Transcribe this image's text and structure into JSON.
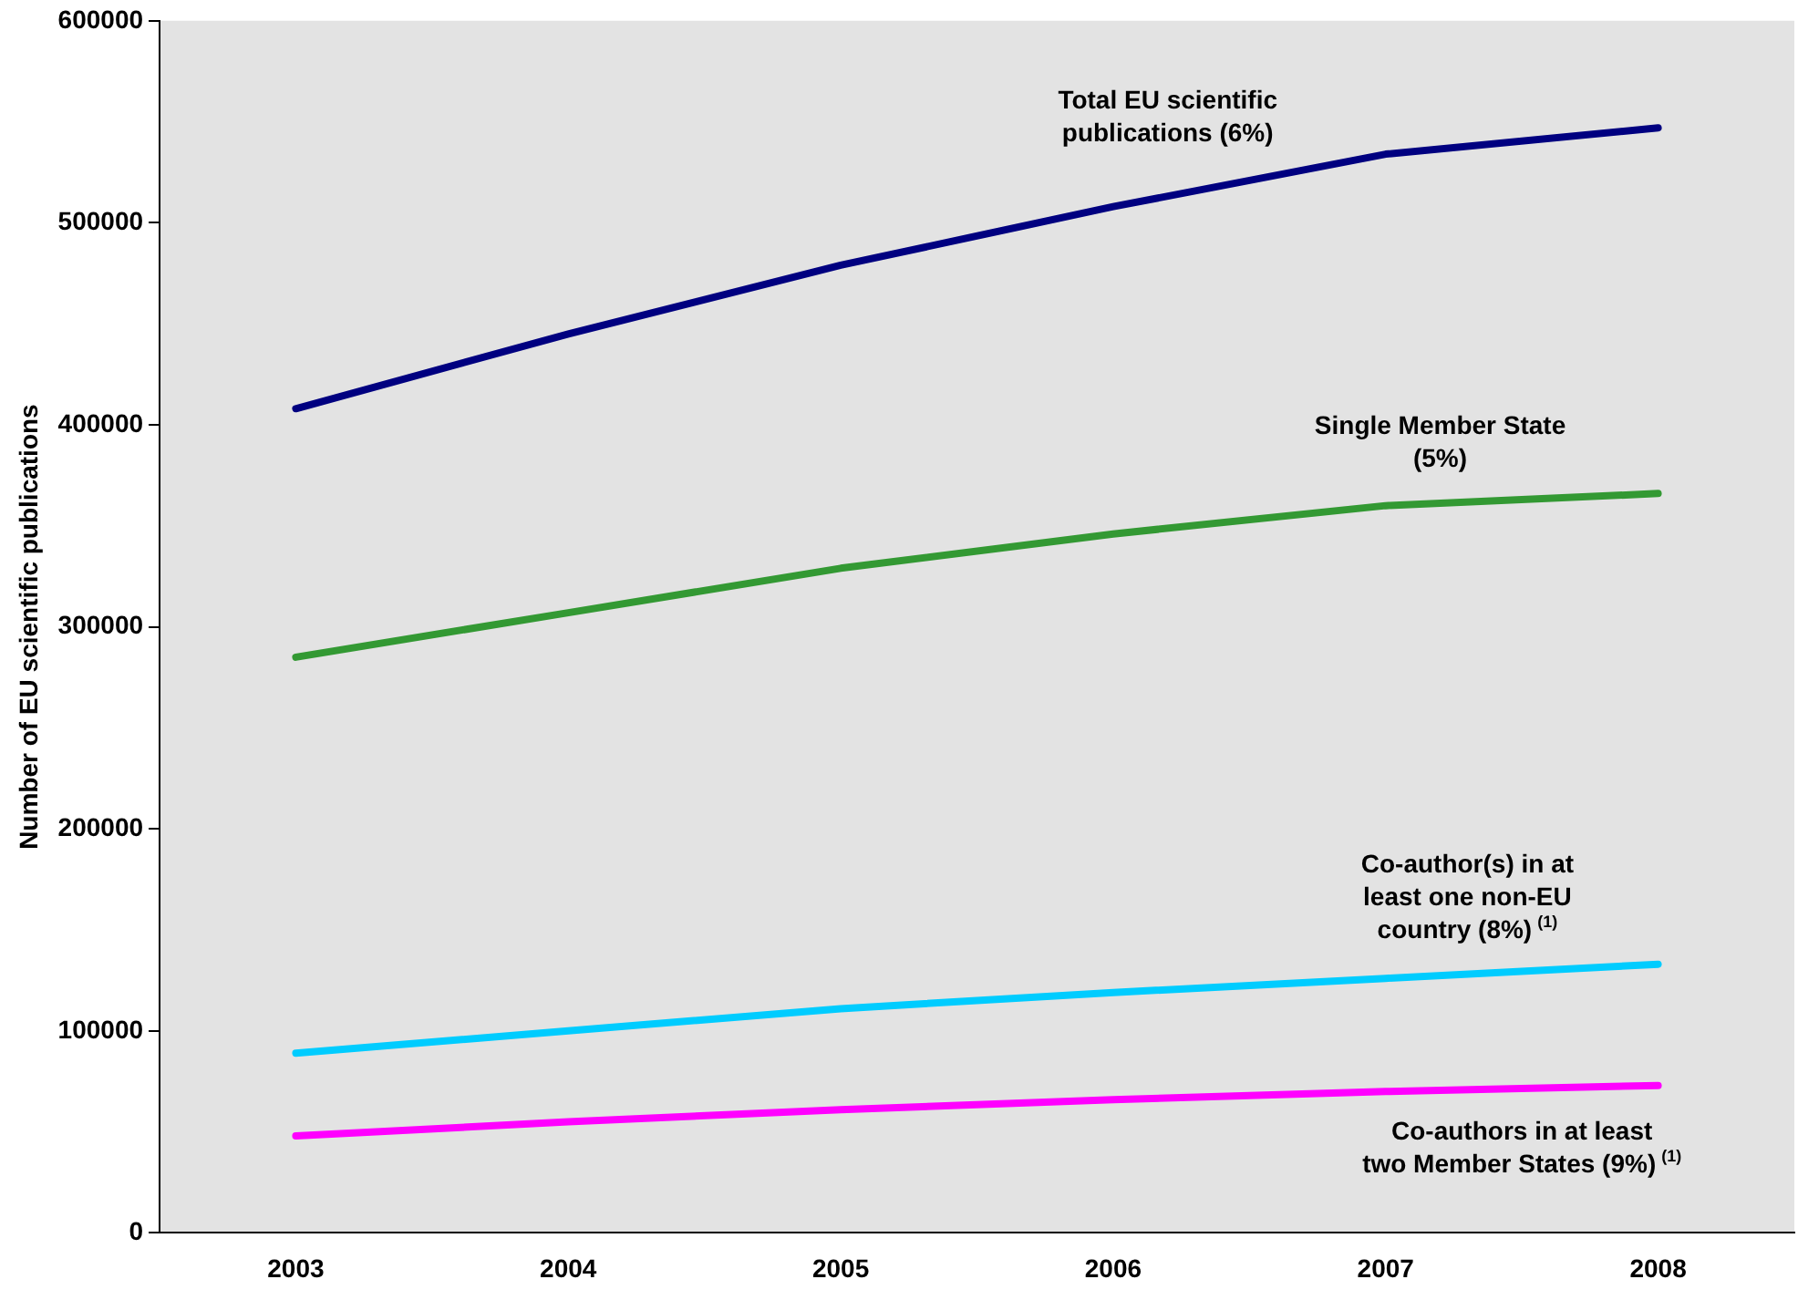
{
  "chart_data": {
    "type": "line",
    "ylabel": "Number of EU scientific publications",
    "categories": [
      "2003",
      "2004",
      "2005",
      "2006",
      "2007",
      "2008"
    ],
    "series": [
      {
        "name": "Total EU scientific publications (6%)",
        "color": "#000080",
        "values": [
          408000,
          445000,
          479000,
          508000,
          534000,
          547000
        ]
      },
      {
        "name": "Single Member State (5%)",
        "color": "#339933",
        "values": [
          285000,
          307000,
          329000,
          346000,
          360000,
          366000
        ]
      },
      {
        "name": "Co-author(s) in at least one non-EU country (8%)$^{(1)}$",
        "color": "#00ccff",
        "values": [
          89000,
          100000,
          111000,
          119000,
          126000,
          133000
        ]
      },
      {
        "name": "Co-authors in at least two Member States (9%)$^{(1)}$",
        "color": "#ff00ff",
        "values": [
          48000,
          55000,
          61000,
          66000,
          70000,
          73000
        ]
      }
    ],
    "ylim": [
      0,
      600000
    ],
    "yticks": [
      0,
      100000,
      200000,
      300000,
      400000,
      500000,
      600000
    ],
    "grid": false,
    "legend": false,
    "marker": "none",
    "line_style": "solid"
  }
}
